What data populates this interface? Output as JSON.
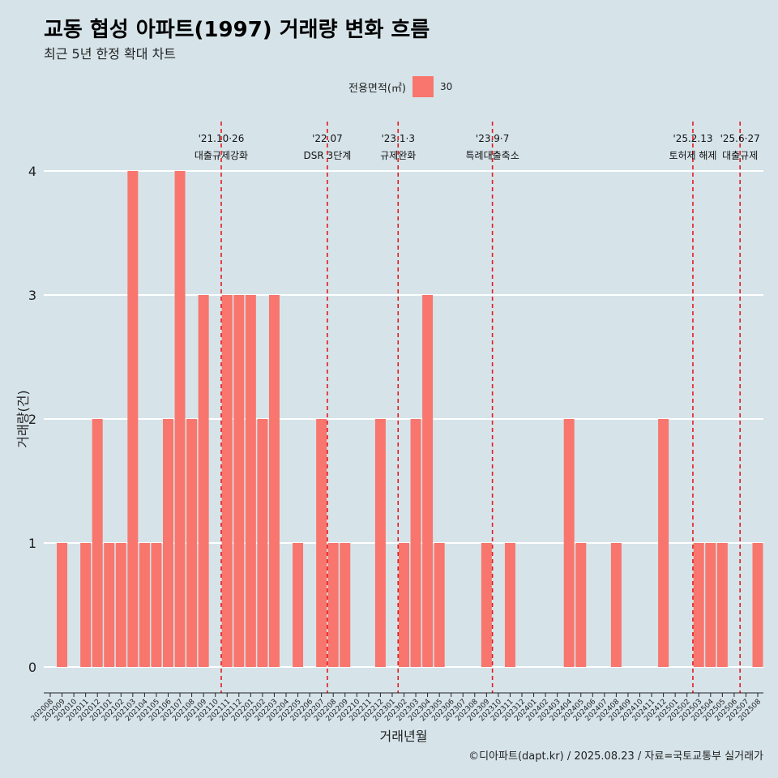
{
  "header": {
    "title": "교동 협성 아파트(1997) 거래량 변화 흐름",
    "subtitle": "최근 5년 한정 확대 차트"
  },
  "legend": {
    "title": "전용면적(㎡)",
    "items": [
      {
        "label": "30",
        "color": "#f8766d"
      }
    ]
  },
  "caption": "©디아파트(dapt.kr) / 2025.08.23 / 자료=국토교통부 실거래가",
  "colors": {
    "background": "#d6e4ea",
    "bar": "#f8766d",
    "event_line": "#e41a1c",
    "grid": "#ffffff"
  },
  "chart_data": {
    "type": "bar",
    "xlabel": "거래년월",
    "ylabel": "거래량(건)",
    "ylim": [
      0,
      4
    ],
    "yticks": [
      0,
      1,
      2,
      3,
      4
    ],
    "grid": true,
    "legend_position": "top",
    "categories": [
      "202008",
      "202009",
      "202010",
      "202011",
      "202012",
      "202101",
      "202102",
      "202103",
      "202104",
      "202105",
      "202106",
      "202107",
      "202108",
      "202109",
      "202110",
      "202111",
      "202112",
      "202201",
      "202202",
      "202203",
      "202204",
      "202205",
      "202206",
      "202207",
      "202208",
      "202209",
      "202210",
      "202211",
      "202212",
      "202301",
      "202302",
      "202303",
      "202304",
      "202305",
      "202306",
      "202307",
      "202308",
      "202309",
      "202310",
      "202311",
      "202312",
      "202401",
      "202402",
      "202403",
      "202404",
      "202405",
      "202406",
      "202407",
      "202408",
      "202409",
      "202410",
      "202411",
      "202412",
      "202501",
      "202502",
      "202503",
      "202504",
      "202505",
      "202506",
      "202507",
      "202508"
    ],
    "series": [
      {
        "name": "30",
        "values": [
          0,
          1,
          0,
          1,
          2,
          1,
          1,
          4,
          1,
          1,
          2,
          4,
          2,
          3,
          0,
          3,
          3,
          3,
          2,
          3,
          0,
          1,
          0,
          2,
          1,
          1,
          0,
          0,
          2,
          0,
          1,
          2,
          3,
          1,
          0,
          0,
          0,
          1,
          0,
          1,
          0,
          0,
          0,
          0,
          2,
          1,
          0,
          0,
          1,
          0,
          0,
          0,
          2,
          0,
          0,
          1,
          1,
          1,
          0,
          0,
          1
        ]
      }
    ],
    "events": [
      {
        "date": "'21.10·26",
        "label": "대출규제강화",
        "after": "202110"
      },
      {
        "date": "'22.07",
        "label": "DSR 3단계",
        "after": "202207"
      },
      {
        "date": "'23.1·3",
        "label": "규제완화",
        "after": "202301"
      },
      {
        "date": "'23.9·7",
        "label": "특례대출축소",
        "after": "202309"
      },
      {
        "date": "'25.2.13",
        "label": "토허제 해제",
        "after": "202502"
      },
      {
        "date": "'25.6·27",
        "label": "대출규제",
        "after": "202506"
      }
    ]
  }
}
